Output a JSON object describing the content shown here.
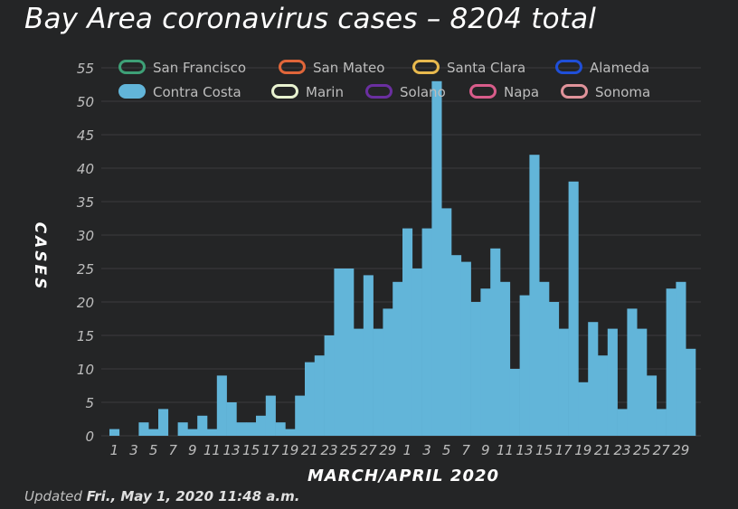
{
  "chart_data": {
    "type": "bar",
    "title": "Bay Area coronavirus cases – 8204 total",
    "xlabel": "MARCH/APRIL 2020",
    "ylabel": "CASES",
    "ylim": [
      0,
      55
    ],
    "yticks": [
      0,
      5,
      10,
      15,
      20,
      25,
      30,
      35,
      40,
      45,
      50,
      55
    ],
    "grid": true,
    "legend_position": "top",
    "legend": [
      {
        "name": "San Francisco",
        "color": "#3ea077",
        "visible": false
      },
      {
        "name": "San Mateo",
        "color": "#e0663a",
        "visible": false
      },
      {
        "name": "Santa Clara",
        "color": "#e8b94e",
        "visible": false
      },
      {
        "name": "Alameda",
        "color": "#1f4fd8",
        "visible": false
      },
      {
        "name": "Contra Costa",
        "color": "#62b5d9",
        "visible": true
      },
      {
        "name": "Marin",
        "color": "#e8f2d0",
        "visible": false
      },
      {
        "name": "Solano",
        "color": "#6a2fa0",
        "visible": false
      },
      {
        "name": "Napa",
        "color": "#d85c8a",
        "visible": false
      },
      {
        "name": "Sonoma",
        "color": "#e0939a",
        "visible": false
      }
    ],
    "x_tick_labels": [
      "1",
      "3",
      "5",
      "7",
      "9",
      "11",
      "13",
      "15",
      "17",
      "19",
      "21",
      "23",
      "25",
      "27",
      "29",
      "1",
      "3",
      "5",
      "7",
      "9",
      "11",
      "13",
      "15",
      "17",
      "19",
      "21",
      "23",
      "25",
      "27",
      "29"
    ],
    "categories": [
      "Mar 1",
      "Mar 2",
      "Mar 3",
      "Mar 4",
      "Mar 5",
      "Mar 6",
      "Mar 7",
      "Mar 8",
      "Mar 9",
      "Mar 10",
      "Mar 11",
      "Mar 12",
      "Mar 13",
      "Mar 14",
      "Mar 15",
      "Mar 16",
      "Mar 17",
      "Mar 18",
      "Mar 19",
      "Mar 20",
      "Mar 21",
      "Mar 22",
      "Mar 23",
      "Mar 24",
      "Mar 25",
      "Mar 26",
      "Mar 27",
      "Mar 28",
      "Mar 29",
      "Mar 30",
      "Mar 31",
      "Apr 1",
      "Apr 2",
      "Apr 3",
      "Apr 4",
      "Apr 5",
      "Apr 6",
      "Apr 7",
      "Apr 8",
      "Apr 9",
      "Apr 10",
      "Apr 11",
      "Apr 12",
      "Apr 13",
      "Apr 14",
      "Apr 15",
      "Apr 16",
      "Apr 17",
      "Apr 18",
      "Apr 19",
      "Apr 20",
      "Apr 21",
      "Apr 22",
      "Apr 23",
      "Apr 24",
      "Apr 25",
      "Apr 26",
      "Apr 27",
      "Apr 28",
      "Apr 29"
    ],
    "series": [
      {
        "name": "Contra Costa",
        "color": "#62b5d9",
        "values": [
          1,
          0,
          0,
          2,
          1,
          4,
          0,
          2,
          1,
          3,
          1,
          9,
          5,
          2,
          2,
          3,
          6,
          2,
          1,
          6,
          11,
          12,
          15,
          25,
          25,
          16,
          24,
          16,
          19,
          23,
          31,
          25,
          31,
          53,
          34,
          27,
          26,
          20,
          22,
          28,
          23,
          10,
          21,
          42,
          23,
          20,
          16,
          38,
          8,
          17,
          12,
          16,
          4,
          19,
          16,
          9,
          4,
          22,
          23,
          13
        ]
      }
    ]
  },
  "footer": {
    "prefix": "Updated ",
    "date": "Fri., May 1, 2020 11:48 a.m."
  }
}
